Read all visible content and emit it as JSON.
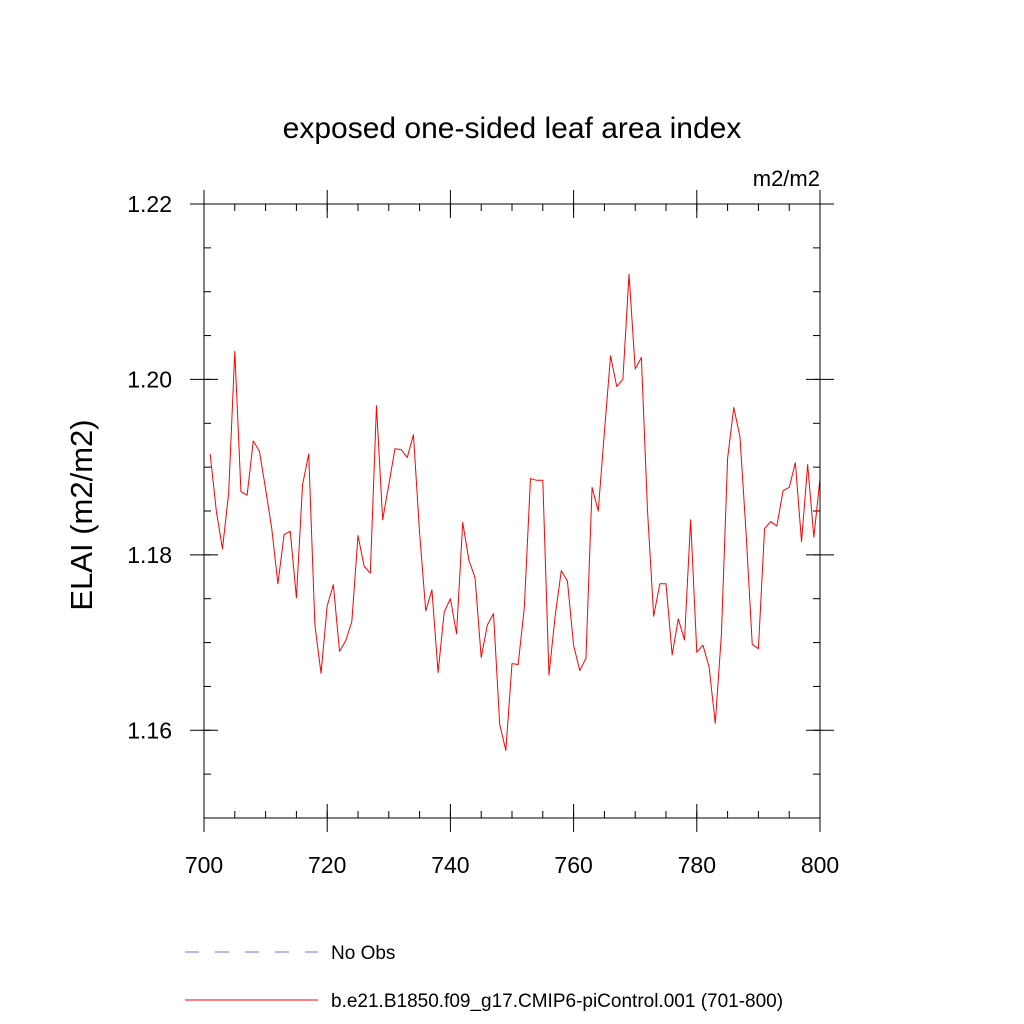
{
  "chart_data": {
    "type": "line",
    "title": "exposed one-sided leaf area index",
    "units": "m2/m2",
    "ylabel": "ELAI  (m2/m2)",
    "xlabel": "",
    "xlim": [
      700,
      800
    ],
    "ylim": [
      1.15,
      1.22
    ],
    "xticks": [
      700,
      720,
      740,
      760,
      780,
      800
    ],
    "xtick_labels": [
      "700",
      "720",
      "740",
      "760",
      "780",
      "800"
    ],
    "yticks": [
      1.16,
      1.18,
      1.2,
      1.22
    ],
    "ytick_labels": [
      "1.16",
      "1.18",
      "1.20",
      "1.22"
    ],
    "x_minor_step": 5,
    "y_minor_step": 0.005,
    "grid": false,
    "series": [
      {
        "name": "b.e21.B1850.f09_g17.CMIP6-piControl.001 (701-800)",
        "color": "#ff0000",
        "style": "solid",
        "x_start": 701,
        "x_step": 1,
        "values": [
          1.1915,
          1.185,
          1.1807,
          1.187,
          1.2032,
          1.1872,
          1.1868,
          1.193,
          1.1918,
          1.1875,
          1.183,
          1.1767,
          1.1823,
          1.1827,
          1.1751,
          1.188,
          1.1915,
          1.172,
          1.1665,
          1.1742,
          1.1766,
          1.169,
          1.1702,
          1.1724,
          1.1822,
          1.1787,
          1.1779,
          1.197,
          1.184,
          1.188,
          1.1921,
          1.192,
          1.1911,
          1.1937,
          1.1825,
          1.1736,
          1.176,
          1.1666,
          1.1735,
          1.175,
          1.171,
          1.1837,
          1.1794,
          1.1774,
          1.1683,
          1.172,
          1.1733,
          1.1607,
          1.1577,
          1.1676,
          1.1675,
          1.174,
          1.1887,
          1.1885,
          1.1885,
          1.1663,
          1.173,
          1.1782,
          1.177,
          1.1697,
          1.1668,
          1.1682,
          1.1877,
          1.185,
          1.194,
          1.2027,
          1.1992,
          1.2,
          1.212,
          1.2012,
          1.2025,
          1.185,
          1.173,
          1.1767,
          1.1767,
          1.1686,
          1.1727,
          1.1703,
          1.184,
          1.1689,
          1.1697,
          1.1672,
          1.1608,
          1.171,
          1.191,
          1.1968,
          1.1935,
          1.1825,
          1.1698,
          1.1693,
          1.183,
          1.1838,
          1.1833,
          1.1873,
          1.1877,
          1.1905,
          1.1815,
          1.1903,
          1.182,
          1.1887
        ]
      }
    ],
    "legend": [
      {
        "label": "No Obs",
        "color": "#7b68ee",
        "style": "dashed"
      },
      {
        "label": "b.e21.B1850.f09_g17.CMIP6-piControl.001 (701-800)",
        "color": "#ff0000",
        "style": "solid"
      }
    ]
  }
}
